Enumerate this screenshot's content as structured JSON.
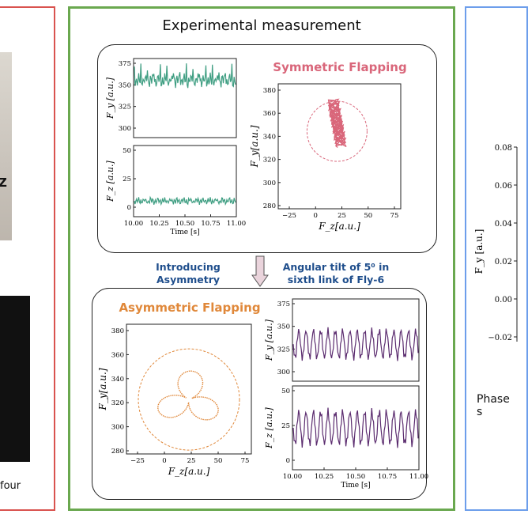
{
  "header": {
    "title": "Experimental measurement"
  },
  "left_panel": {
    "caption_fragment": "four",
    "photo_letter": "Z"
  },
  "right_panel": {
    "caption_fragment": "Phase s",
    "ylabel": "F_y [a.u.]",
    "yticks": [
      "0.08",
      "0.06",
      "0.04",
      "0.02",
      "0.00",
      "−0.02"
    ]
  },
  "symmetric": {
    "title": "Symmetric Flapping",
    "title_color": "#d9667a",
    "ts_color": "#3f9e82",
    "phase_color": "#d9667a",
    "fy_label": "F_y [a.u.]",
    "fz_label": "F_z [a.u.]",
    "fy_ticks": [
      "375",
      "350",
      "325",
      "300"
    ],
    "fz_ticks": [
      "50",
      "25",
      "0"
    ],
    "time_ticks": [
      "10.00",
      "10.25",
      "10.50",
      "10.75",
      "11.00"
    ],
    "time_label": "Time [s]",
    "phase_xticks": [
      "−25",
      "0",
      "25",
      "50",
      "75"
    ],
    "phase_yticks": [
      "380",
      "360",
      "340",
      "320",
      "300",
      "280"
    ],
    "phase_xlabel": "F_z[a.u.]",
    "phase_ylabel": "F_y[a.u.]"
  },
  "transition": {
    "left_note": "Introducing Asymmetry",
    "right_note": "Angular tilt of 5⁰ in sixth link of Fly-6"
  },
  "asymmetric": {
    "title": "Asymmetric Flapping",
    "title_color": "#e0883a",
    "ts_color": "#5b2c6f",
    "phase_color": "#e0883a",
    "fy_label": "F_y [a.u.]",
    "fz_label": "F_z [a.u.]",
    "fy_ticks": [
      "375",
      "350",
      "325",
      "300"
    ],
    "fz_ticks": [
      "50",
      "25",
      "0"
    ],
    "time_ticks": [
      "10.00",
      "10.25",
      "10.50",
      "10.75",
      "11.00"
    ],
    "time_label": "Time [s]",
    "phase_xticks": [
      "−25",
      "0",
      "25",
      "50",
      "75"
    ],
    "phase_yticks": [
      "380",
      "360",
      "340",
      "320",
      "300",
      "280"
    ],
    "phase_xlabel": "F_z[a.u.]",
    "phase_ylabel": "F_y[a.u.]"
  }
}
